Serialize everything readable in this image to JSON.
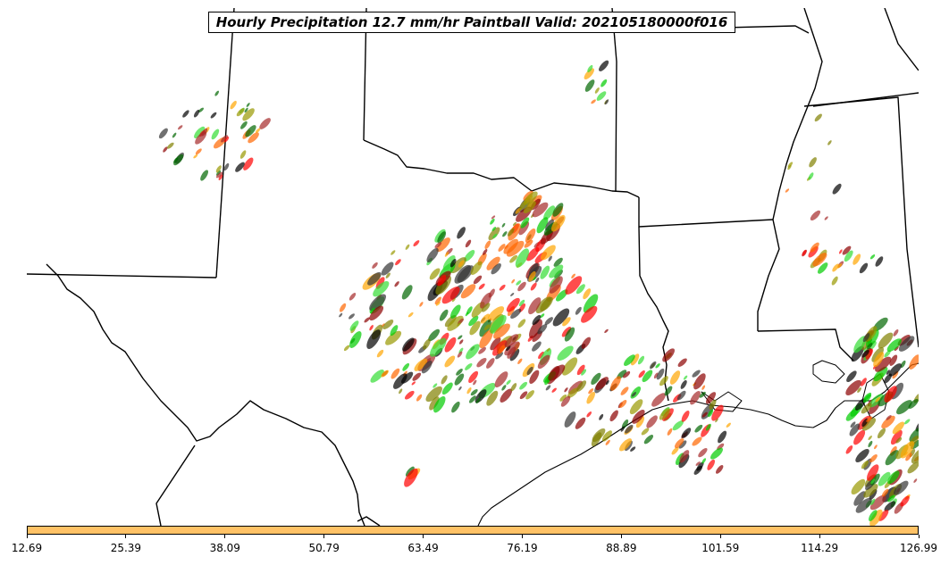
{
  "title": "Hourly Precipitation 12.7 mm/hr Paintball Valid: 202105180000f016",
  "colorbar": {
    "color": "#ffc266",
    "ticks": [
      "12.69",
      "25.39",
      "38.09",
      "50.79",
      "63.49",
      "76.19",
      "88.89",
      "101.59",
      "114.29",
      "126.99"
    ]
  },
  "member_colors": [
    "#ff0000",
    "#ff6600",
    "#ffa500",
    "#00cc00",
    "#33dd33",
    "#006600",
    "#8b0000",
    "#a52a2a",
    "#808000",
    "#999900",
    "#000000",
    "#333333"
  ]
}
